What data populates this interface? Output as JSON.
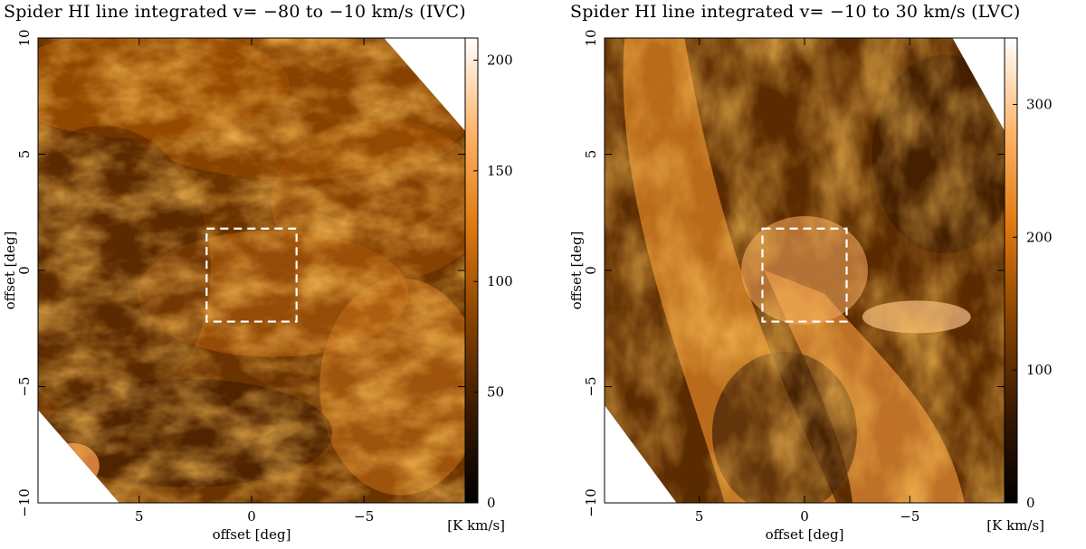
{
  "figure": {
    "panels": [
      {
        "title": "Spider HI line integrated v= −80 to −10 km/s (IVC)",
        "xlabel": "offset [deg]",
        "ylabel": "offset [deg]",
        "colorbar_unit": "[K km/s]"
      },
      {
        "title": "Spider HI line integrated v= −10 to 30 km/s (LVC)",
        "xlabel": "offset [deg]",
        "ylabel": "offset [deg]",
        "colorbar_unit": "[K km/s]"
      }
    ]
  },
  "chart_data": [
    {
      "type": "heatmap",
      "title": "Spider HI line integrated v= −80 to −10 km/s (IVC)",
      "xlabel": "offset [deg]",
      "ylabel": "offset [deg]",
      "x_ticks": [
        "5",
        "0",
        "−5"
      ],
      "x_tick_values": [
        5,
        0,
        -5
      ],
      "y_ticks": [
        "−10",
        "−5",
        "0",
        "5",
        "10"
      ],
      "y_tick_values": [
        -10,
        -5,
        0,
        5,
        10
      ],
      "xlim": [
        9.5,
        -9.5
      ],
      "ylim": [
        -10,
        10
      ],
      "colorbar": {
        "unit": "[K km/s]",
        "ticks": [
          "0",
          "50",
          "100",
          "150",
          "200"
        ],
        "tick_values": [
          0,
          50,
          100,
          150,
          200
        ],
        "range": [
          0,
          210
        ]
      },
      "colormap": [
        "#000000",
        "#3b1a00",
        "#8a4300",
        "#e07a10",
        "#ffb46a",
        "#ffffff"
      ],
      "box": {
        "x": [
          2,
          -2
        ],
        "y": [
          -2.2,
          1.8
        ]
      },
      "box_color": "#ffffff"
    },
    {
      "type": "heatmap",
      "title": "Spider HI line integrated v= −10 to 30 km/s (LVC)",
      "xlabel": "offset [deg]",
      "ylabel": "offset [deg]",
      "x_ticks": [
        "5",
        "0",
        "−5"
      ],
      "x_tick_values": [
        5,
        0,
        -5
      ],
      "y_ticks": [
        "−10",
        "−5",
        "0",
        "5",
        "10"
      ],
      "y_tick_values": [
        -10,
        -5,
        0,
        5,
        10
      ],
      "xlim": [
        9.5,
        -9.5
      ],
      "ylim": [
        -10,
        10
      ],
      "colorbar": {
        "unit": "[K km/s]",
        "ticks": [
          "0",
          "100",
          "200",
          "300"
        ],
        "tick_values": [
          0,
          100,
          200,
          300
        ],
        "range": [
          0,
          350
        ]
      },
      "colormap": [
        "#000000",
        "#3b1a00",
        "#8a4300",
        "#e07a10",
        "#ffb46a",
        "#ffffff"
      ],
      "box": {
        "x": [
          2,
          -2
        ],
        "y": [
          -2.2,
          1.8
        ]
      },
      "box_color": "#ffffff"
    }
  ]
}
